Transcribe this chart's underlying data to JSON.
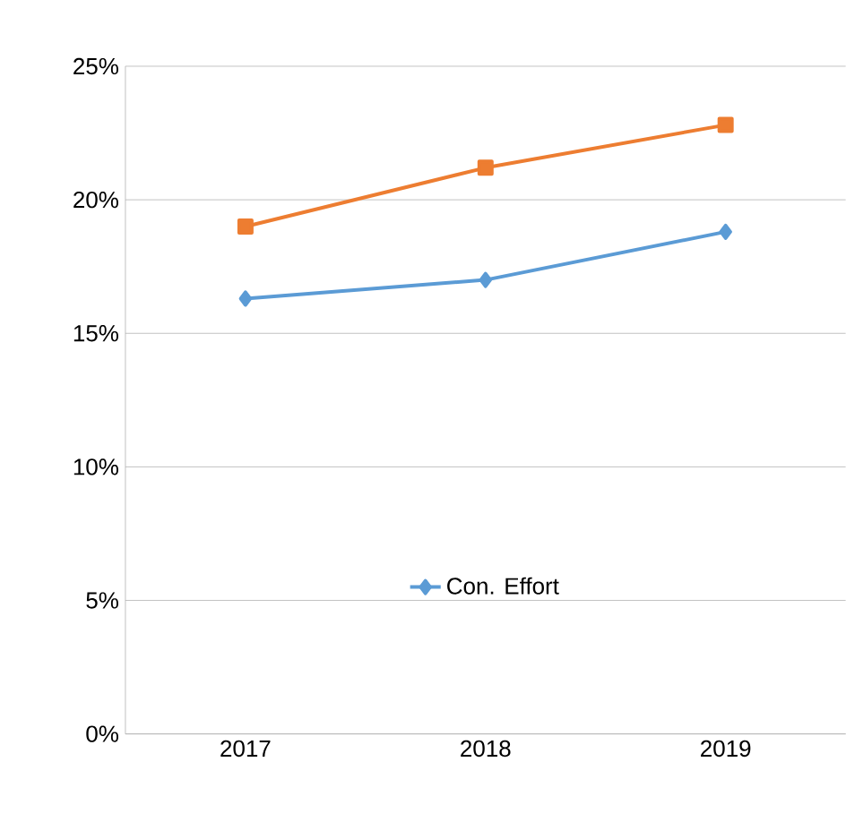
{
  "chart_data": {
    "type": "line",
    "categories": [
      "2017",
      "2018",
      "2019"
    ],
    "series": [
      {
        "name": "Con. Effort",
        "color": "#5b9bd5",
        "values": [
          16.3,
          17.0,
          18.8
        ],
        "marker": "diamond"
      },
      {
        "color": "#ed7d31",
        "values": [
          19.0,
          21.2,
          22.8
        ],
        "marker": "square"
      }
    ],
    "ylim": [
      0,
      25
    ],
    "yticks": [
      {
        "value": 0,
        "label": "0%"
      },
      {
        "value": 5,
        "label": "5%"
      },
      {
        "value": 10,
        "label": "10%"
      },
      {
        "value": 15,
        "label": "15%"
      },
      {
        "value": 20,
        "label": "20%"
      },
      {
        "value": 25,
        "label": "25%"
      }
    ],
    "grid": "y",
    "legend": "bottom"
  }
}
